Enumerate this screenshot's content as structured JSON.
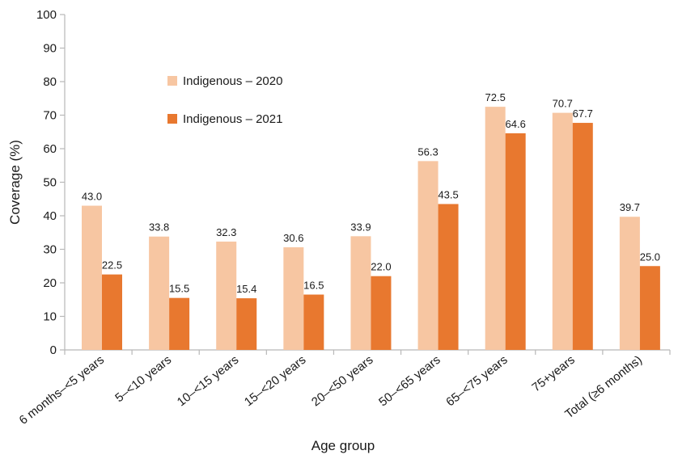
{
  "chart_data": {
    "type": "bar",
    "title": "",
    "xlabel": "Age group",
    "ylabel": "Coverage (%)",
    "ylim": [
      0,
      100
    ],
    "yticks": [
      0,
      10,
      20,
      30,
      40,
      50,
      60,
      70,
      80,
      90,
      100
    ],
    "grid": false,
    "legend_position": "upper-left-inside",
    "categories": [
      "6 months–<5 years",
      "5–<10 years",
      "10–<15 years",
      "15–<20 years",
      "20–<50 years",
      "50–<65 years",
      "65–<75 years",
      "75+years",
      "Total (≥6 months)"
    ],
    "series": [
      {
        "name": "Indigenous – 2020",
        "color": "#f7c6a2",
        "values": [
          43.0,
          33.8,
          32.3,
          30.6,
          33.9,
          56.3,
          72.5,
          70.7,
          39.7
        ],
        "labels": [
          "43.0",
          "33.8",
          "32.3",
          "30.6",
          "33.9",
          "56.3",
          "72.5",
          "70.7",
          "39.7"
        ]
      },
      {
        "name": "Indigenous – 2021",
        "color": "#e8782f",
        "values": [
          22.5,
          15.5,
          15.4,
          16.5,
          22.0,
          43.5,
          64.6,
          67.7,
          25.0
        ],
        "labels": [
          "22.5",
          "15.5",
          "15.4",
          "16.5",
          "22.0",
          "43.5",
          "64.6",
          "67.7",
          "25.0"
        ]
      }
    ]
  }
}
